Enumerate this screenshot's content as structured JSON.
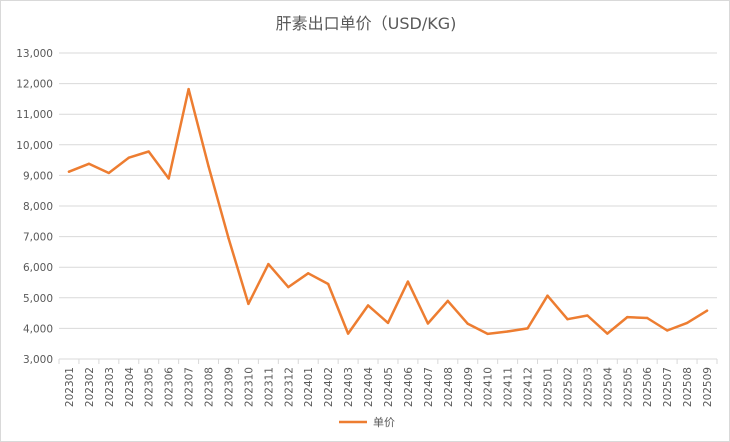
{
  "chart_data": {
    "type": "line",
    "title": "肝素出口单价（USD/KG)",
    "xlabel": "",
    "ylabel": "",
    "ylim": [
      3000,
      13000
    ],
    "yticks": [
      "3,000",
      "4,000",
      "5,000",
      "6,000",
      "7,000",
      "8,000",
      "9,000",
      "10,000",
      "11,000",
      "12,000",
      "13,000"
    ],
    "ytick_values": [
      3000,
      4000,
      5000,
      6000,
      7000,
      8000,
      9000,
      10000,
      11000,
      12000,
      13000
    ],
    "grid": true,
    "legend_position": "bottom",
    "categories": [
      "202301",
      "202302",
      "202303",
      "202304",
      "202305",
      "202306",
      "202307",
      "202308",
      "202309",
      "202310",
      "202311",
      "202312",
      "202401",
      "202402",
      "202403",
      "202404",
      "202405",
      "202406",
      "202407",
      "202408",
      "202409",
      "202410",
      "202411",
      "202412",
      "202501",
      "202502",
      "202503",
      "202504",
      "202505",
      "202506",
      "202507",
      "202508",
      "202509"
    ],
    "series": [
      {
        "name": "单价",
        "color": "#ED7D31",
        "values": [
          9120,
          9380,
          9080,
          9580,
          9780,
          8900,
          11820,
          9300,
          6950,
          4800,
          6100,
          5350,
          5800,
          5450,
          3830,
          4750,
          4180,
          5530,
          4160,
          4900,
          4150,
          3820,
          3900,
          4000,
          5070,
          4300,
          4420,
          3830,
          4370,
          4340,
          3930,
          4180,
          4580
        ]
      }
    ]
  }
}
